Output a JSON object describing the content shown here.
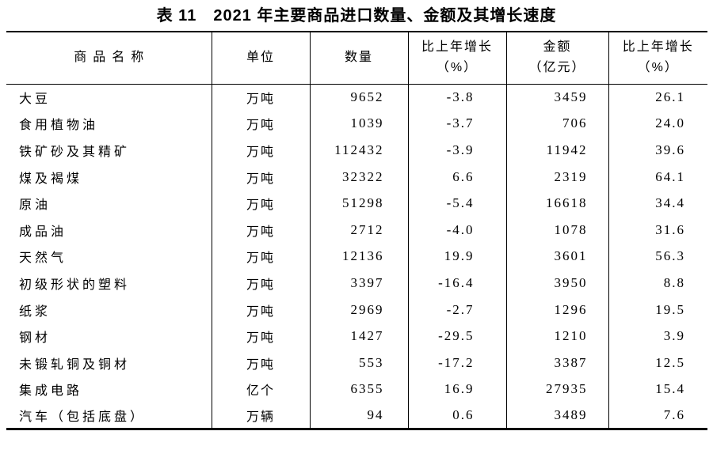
{
  "title": "表 11　2021 年主要商品进口数量、金额及其增长速度",
  "table": {
    "columns": [
      {
        "label": "商品名称"
      },
      {
        "label": "单位"
      },
      {
        "label": "数量"
      },
      {
        "label": "比上年增长\n（%）"
      },
      {
        "label": "金额\n（亿元）"
      },
      {
        "label": "比上年增长\n（%）"
      }
    ],
    "rows": [
      [
        "大豆",
        "万吨",
        "9652",
        "-3.8",
        "3459",
        "26.1"
      ],
      [
        "食用植物油",
        "万吨",
        "1039",
        "-3.7",
        "706",
        "24.0"
      ],
      [
        "铁矿砂及其精矿",
        "万吨",
        "112432",
        "-3.9",
        "11942",
        "39.6"
      ],
      [
        "煤及褐煤",
        "万吨",
        "32322",
        "6.6",
        "2319",
        "64.1"
      ],
      [
        "原油",
        "万吨",
        "51298",
        "-5.4",
        "16618",
        "34.4"
      ],
      [
        "成品油",
        "万吨",
        "2712",
        "-4.0",
        "1078",
        "31.6"
      ],
      [
        "天然气",
        "万吨",
        "12136",
        "19.9",
        "3601",
        "56.3"
      ],
      [
        "初级形状的塑料",
        "万吨",
        "3397",
        "-16.4",
        "3950",
        "8.8"
      ],
      [
        "纸浆",
        "万吨",
        "2969",
        "-2.7",
        "1296",
        "19.5"
      ],
      [
        "钢材",
        "万吨",
        "1427",
        "-29.5",
        "1210",
        "3.9"
      ],
      [
        "未锻轧铜及铜材",
        "万吨",
        "553",
        "-17.2",
        "3387",
        "12.5"
      ],
      [
        "集成电路",
        "亿个",
        "6355",
        "16.9",
        "27935",
        "15.4"
      ],
      [
        "汽车（包括底盘）",
        "万辆",
        "94",
        "0.6",
        "3489",
        "7.6"
      ]
    ]
  },
  "chart_data": {
    "type": "table",
    "title": "表 11　2021 年主要商品进口数量、金额及其增长速度",
    "columns": [
      "商品名称",
      "单位",
      "数量",
      "比上年增长（%）",
      "金额（亿元）",
      "比上年增长（%）"
    ],
    "rows": [
      [
        "大豆",
        "万吨",
        9652,
        -3.8,
        3459,
        26.1
      ],
      [
        "食用植物油",
        "万吨",
        1039,
        -3.7,
        706,
        24.0
      ],
      [
        "铁矿砂及其精矿",
        "万吨",
        112432,
        -3.9,
        11942,
        39.6
      ],
      [
        "煤及褐煤",
        "万吨",
        32322,
        6.6,
        2319,
        64.1
      ],
      [
        "原油",
        "万吨",
        51298,
        -5.4,
        16618,
        34.4
      ],
      [
        "成品油",
        "万吨",
        2712,
        -4.0,
        1078,
        31.6
      ],
      [
        "天然气",
        "万吨",
        12136,
        19.9,
        3601,
        56.3
      ],
      [
        "初级形状的塑料",
        "万吨",
        3397,
        -16.4,
        3950,
        8.8
      ],
      [
        "纸浆",
        "万吨",
        2969,
        -2.7,
        1296,
        19.5
      ],
      [
        "钢材",
        "万吨",
        1427,
        -29.5,
        1210,
        3.9
      ],
      [
        "未锻轧铜及铜材",
        "万吨",
        553,
        -17.2,
        3387,
        12.5
      ],
      [
        "集成电路",
        "亿个",
        6355,
        16.9,
        27935,
        15.4
      ],
      [
        "汽车（包括底盘）",
        "万辆",
        94,
        0.6,
        3489,
        7.6
      ]
    ]
  }
}
